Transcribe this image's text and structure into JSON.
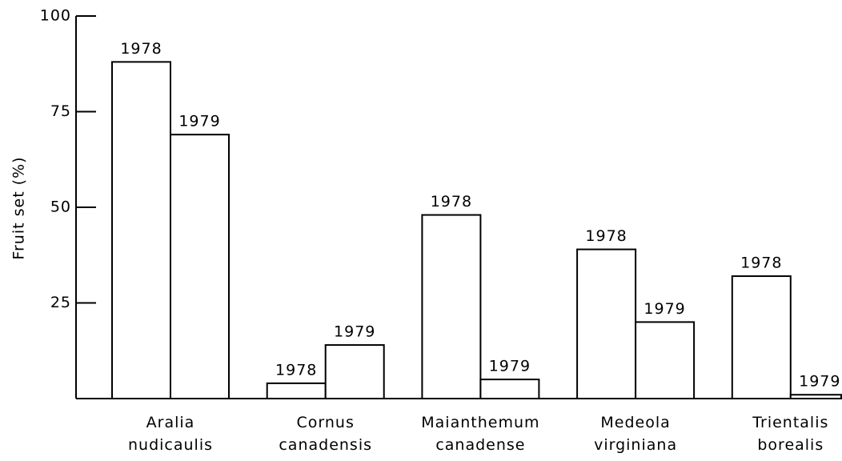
{
  "chart_data": {
    "type": "bar",
    "y_label": "Fruit set (%)",
    "categories": [
      "Aralia nudicaulis",
      "Cornus canadensis",
      "Maianthemum canadense",
      "Medeola virginiana",
      "Trientalis borealis"
    ],
    "series": [
      {
        "name": "1978",
        "color": "#000000",
        "values": [
          88,
          4,
          48,
          39,
          32
        ]
      },
      {
        "name": "1979",
        "color": "#000000",
        "values": [
          69,
          14,
          5,
          20,
          1
        ]
      }
    ],
    "ylim": [
      0,
      100
    ],
    "yticks": [
      25,
      50,
      75,
      100
    ]
  }
}
